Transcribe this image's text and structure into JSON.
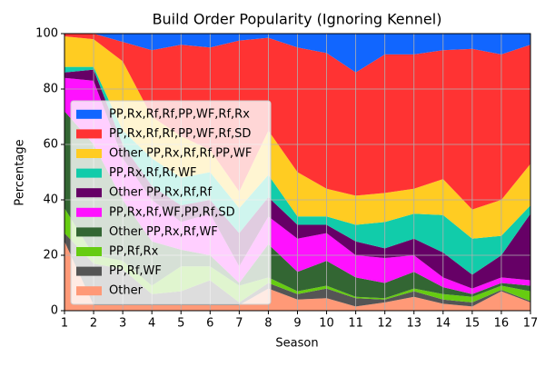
{
  "chart_data": {
    "type": "stacked_area",
    "title": "Build Order Popularity (Ignoring Kennel)",
    "x_label": "Season",
    "y_label": "Percentage",
    "x": [
      1,
      2,
      3,
      4,
      5,
      6,
      7,
      8,
      9,
      10,
      11,
      12,
      13,
      14,
      15,
      16,
      17
    ],
    "xlim": [
      1,
      17
    ],
    "ylim": [
      0,
      100
    ],
    "xticks": [
      1,
      2,
      3,
      4,
      5,
      6,
      7,
      8,
      9,
      10,
      11,
      12,
      13,
      14,
      15,
      16,
      17
    ],
    "yticks": [
      0,
      20,
      40,
      60,
      80,
      100
    ],
    "grid": true,
    "legend": "lower left",
    "series": [
      {
        "name": "Other",
        "color": "#ff9977",
        "values": [
          25,
          2,
          2,
          2,
          2,
          2,
          2,
          8,
          4,
          4.5,
          1.5,
          3,
          5,
          2.5,
          1.5,
          7,
          3
        ]
      },
      {
        "name": "PP,Rf,WF",
        "color": "#555555",
        "values": [
          3,
          15,
          13,
          4,
          5,
          9,
          1,
          2,
          2,
          3.5,
          3,
          1,
          2,
          1.5,
          1.5,
          0.5,
          0.5
        ]
      },
      {
        "name": "PP,Rf,Rx",
        "color": "#66cc11",
        "values": [
          9,
          3,
          3,
          3,
          9,
          5,
          6,
          2,
          1,
          1,
          0.5,
          0.5,
          1,
          2,
          2,
          1.5,
          3.5
        ]
      },
      {
        "name": "Other PP,Rx,Rf,WF",
        "color": "#336633",
        "values": [
          35,
          40,
          22,
          16,
          6,
          4,
          1,
          12,
          7,
          9,
          7,
          5.5,
          6,
          2.5,
          1,
          1,
          2
        ]
      },
      {
        "name": "PP,Rx,Rf,WF,PP,Rf,SD",
        "color": "#ff11ff",
        "values": [
          12,
          23,
          15,
          15,
          10,
          15,
          6,
          10,
          12,
          10,
          8,
          9,
          6,
          3.5,
          2,
          2,
          2
        ]
      },
      {
        "name": "Other PP,Rx,Rf,Rf",
        "color": "#660066",
        "values": [
          2,
          4,
          5,
          5,
          6,
          5,
          12,
          7,
          5,
          3,
          5,
          3.5,
          6,
          9,
          5,
          8,
          24
        ]
      },
      {
        "name": "PP,Rx,Rf,Rf,WF",
        "color": "#11ccaa",
        "values": [
          2,
          1,
          5,
          10,
          10,
          10,
          9,
          8,
          3,
          3,
          6,
          9.5,
          9,
          13.5,
          13,
          7,
          3
        ]
      },
      {
        "name": "Other PP,Rx,Rf,Rf,PP,WF",
        "color": "#ffcc22",
        "values": [
          11,
          10,
          25,
          15,
          15,
          8,
          6,
          16,
          16,
          10,
          10.5,
          10.5,
          9,
          13,
          10.5,
          13,
          15
        ]
      },
      {
        "name": "PP,Rx,Rf,Rf,PP,WF,Rf,SD",
        "color": "#ff3333",
        "values": [
          1,
          2,
          7,
          24,
          33,
          37,
          54.5,
          33.5,
          45,
          49,
          44.5,
          50,
          48.5,
          46.5,
          58,
          52.5,
          43
        ]
      },
      {
        "name": "PP,Rx,Rf,Rf,PP,WF,Rf,Rx",
        "color": "#1166ff",
        "values": [
          0,
          0,
          3,
          6,
          4,
          5,
          2.5,
          1.5,
          5,
          7,
          14,
          7.5,
          7.5,
          6,
          5.5,
          7.5,
          4
        ]
      }
    ]
  }
}
